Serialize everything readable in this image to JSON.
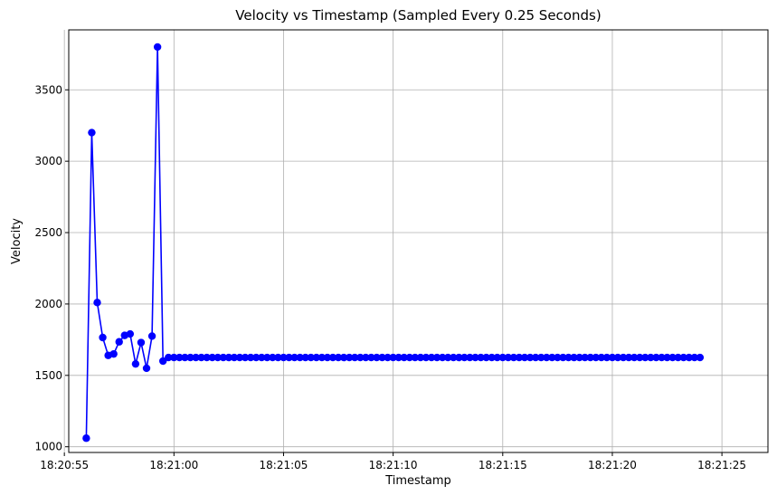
{
  "chart_data": {
    "type": "line",
    "title": "Velocity vs Timestamp (Sampled Every 0.25 Seconds)",
    "xlabel": "Timestamp",
    "ylabel": "Velocity",
    "x_start": "18:20:56.00",
    "x_step_seconds": 0.25,
    "xlim": [
      "18:20:55.20",
      "18:21:27.10"
    ],
    "ylim": [
      960,
      3920
    ],
    "xticks": [
      "18:20:55",
      "18:21:00",
      "18:21:05",
      "18:21:10",
      "18:21:15",
      "18:21:20",
      "18:21:25"
    ],
    "yticks": [
      1000,
      1500,
      2000,
      2500,
      3000,
      3500
    ],
    "grid": true,
    "line_color": "#0000ff",
    "series": [
      {
        "values": [
          1060,
          3200,
          2010,
          1765,
          1640,
          1650,
          1735,
          1780,
          1790,
          1580,
          1730,
          1550,
          1775,
          3800,
          1600,
          1625,
          1625,
          1625,
          1625,
          1625,
          1625,
          1625,
          1625,
          1625,
          1625,
          1625,
          1625,
          1625,
          1625,
          1625,
          1625,
          1625,
          1625,
          1625,
          1625,
          1625,
          1625,
          1625,
          1625,
          1625,
          1625,
          1625,
          1625,
          1625,
          1625,
          1625,
          1625,
          1625,
          1625,
          1625,
          1625,
          1625,
          1625,
          1625,
          1625,
          1625,
          1625,
          1625,
          1625,
          1625,
          1625,
          1625,
          1625,
          1625,
          1625,
          1625,
          1625,
          1625,
          1625,
          1625,
          1625,
          1625,
          1625,
          1625,
          1625,
          1625,
          1625,
          1625,
          1625,
          1625,
          1625,
          1625,
          1625,
          1625,
          1625,
          1625,
          1625,
          1625,
          1625,
          1625,
          1625,
          1625,
          1625,
          1625,
          1625,
          1625,
          1625,
          1625,
          1625,
          1625,
          1625,
          1625,
          1625,
          1625,
          1625,
          1625,
          1625,
          1625,
          1625,
          1625,
          1625,
          1625,
          1625
        ]
      }
    ]
  }
}
